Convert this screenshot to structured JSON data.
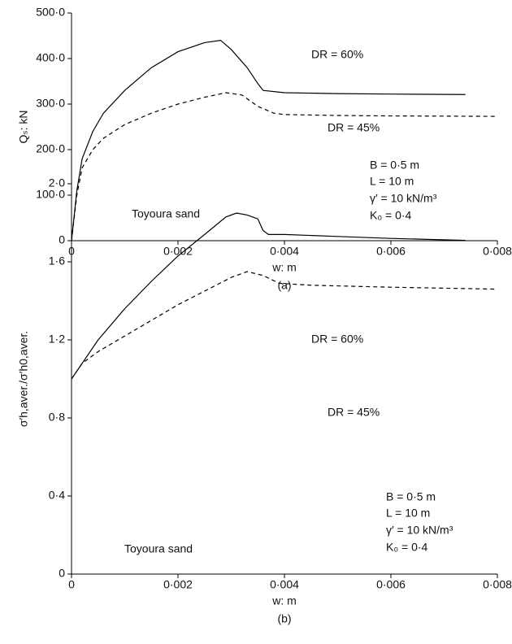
{
  "chart_data": [
    {
      "type": "line",
      "x_label": "w: m",
      "y_label": "Qₛ: kN",
      "caption": "(a)",
      "xlim": [
        0,
        0.008
      ],
      "ylim": [
        0,
        500
      ],
      "grid": false,
      "xticks": [
        0,
        {
          "value": 0.002,
          "label": "0·002"
        },
        {
          "value": 0.004,
          "label": "0·004"
        },
        {
          "value": 0.006,
          "label": "0·006"
        },
        {
          "value": 0.008,
          "label": "0·008"
        }
      ],
      "yticks": [
        0,
        {
          "value": 100,
          "label": "100·0"
        },
        {
          "value": 200,
          "label": "200·0"
        },
        {
          "value": 300,
          "label": "300·0"
        },
        {
          "value": 400,
          "label": "400·0"
        },
        {
          "value": 500,
          "label": "500·0"
        }
      ],
      "annotations": [
        "B = 0·5 m",
        "L = 10 m",
        "γ′ = 10 kN/m³",
        "K₀ = 0·4",
        "Toyoura sand"
      ],
      "series": [
        {
          "name": "DR = 60%",
          "color": "#000000",
          "linestyle": "solid",
          "x": [
            0,
            0.0001,
            0.0002,
            0.0004,
            0.0006,
            0.001,
            0.0015,
            0.002,
            0.0025,
            0.0028,
            0.003,
            0.0033,
            0.0035,
            0.0036,
            0.004,
            0.005,
            0.006,
            0.0074
          ],
          "values": [
            0,
            110,
            180,
            240,
            280,
            330,
            380,
            415,
            435,
            440,
            420,
            380,
            345,
            330,
            325,
            323,
            322,
            321
          ]
        },
        {
          "name": "DR = 45%",
          "color": "#000000",
          "linestyle": "dashed",
          "x": [
            0,
            0.0001,
            0.0002,
            0.0004,
            0.0006,
            0.001,
            0.0015,
            0.002,
            0.0025,
            0.0029,
            0.0032,
            0.0035,
            0.0038,
            0.004,
            0.005,
            0.006,
            0.008
          ],
          "values": [
            0,
            100,
            160,
            200,
            225,
            255,
            280,
            300,
            315,
            325,
            320,
            295,
            280,
            277,
            275,
            274,
            273
          ]
        }
      ]
    },
    {
      "type": "line",
      "x_label": "w: m",
      "y_label": "σ′h,aver./σ′h0,aver.",
      "caption": "(b)",
      "xlim": [
        0,
        0.008
      ],
      "ylim": [
        0,
        2
      ],
      "grid": false,
      "xticks": [
        0,
        {
          "value": 0.002,
          "label": "0·002"
        },
        {
          "value": 0.004,
          "label": "0·004"
        },
        {
          "value": 0.006,
          "label": "0·006"
        },
        {
          "value": 0.008,
          "label": "0·008"
        }
      ],
      "yticks": [
        0,
        {
          "value": 0.4,
          "label": "0·4"
        },
        {
          "value": 0.8,
          "label": "0·8"
        },
        {
          "value": 1.2,
          "label": "1·2"
        },
        {
          "value": 1.6,
          "label": "1·6"
        },
        {
          "value": 2,
          "label": "2·0"
        }
      ],
      "annotations": [
        "B = 0·5 m",
        "L = 10 m",
        "γ′ = 10 kN/m³",
        "K₀ = 0·4",
        "Toyoura sand"
      ],
      "series": [
        {
          "name": "DR = 60%",
          "color": "#000000",
          "linestyle": "solid",
          "x": [
            0,
            0.0002,
            0.0005,
            0.001,
            0.0015,
            0.002,
            0.0025,
            0.0029,
            0.0031,
            0.0033,
            0.0035,
            0.0036,
            0.0037,
            0.004,
            0.005,
            0.006,
            0.0074
          ],
          "values": [
            1.0,
            1.08,
            1.2,
            1.36,
            1.5,
            1.63,
            1.74,
            1.83,
            1.85,
            1.84,
            1.82,
            1.76,
            1.74,
            1.74,
            1.73,
            1.72,
            1.71
          ]
        },
        {
          "name": "DR = 45%",
          "color": "#000000",
          "linestyle": "dashed",
          "x": [
            0,
            0.0002,
            0.0005,
            0.001,
            0.0015,
            0.002,
            0.0025,
            0.003,
            0.0033,
            0.0036,
            0.0039,
            0.0045,
            0.006,
            0.008
          ],
          "values": [
            1.0,
            1.08,
            1.14,
            1.22,
            1.3,
            1.38,
            1.45,
            1.52,
            1.55,
            1.53,
            1.49,
            1.48,
            1.47,
            1.46
          ]
        }
      ]
    }
  ]
}
